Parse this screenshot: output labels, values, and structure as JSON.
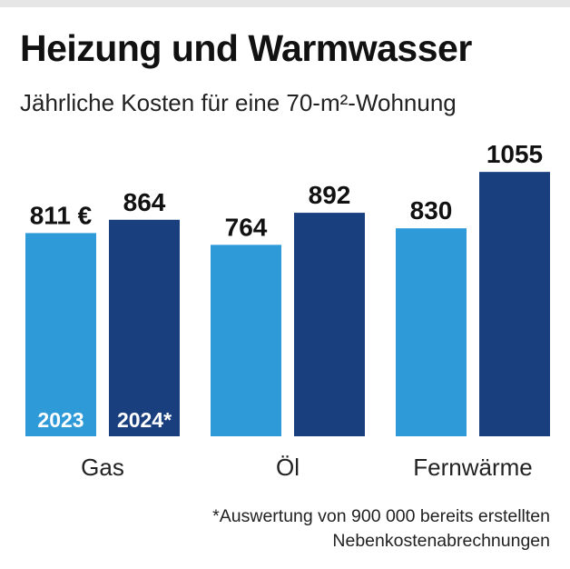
{
  "title": "Heizung und Warmwasser",
  "subtitle": "Jährliche Kosten für eine 70-m²-Wohnung",
  "footnote": {
    "line1": "*Auswertung von 900 000 bereits erstellten",
    "line2": "Nebenkostenabrechnungen"
  },
  "colors": {
    "series_2023": "#2e9ad8",
    "series_2024": "#193f7e",
    "text": "#111111"
  },
  "chart_data": {
    "type": "bar",
    "title": "Heizung und Warmwasser",
    "subtitle": "Jährliche Kosten für eine 70-m²-Wohnung",
    "categories": [
      "Gas",
      "Öl",
      "Fernwärme"
    ],
    "series": [
      {
        "name": "2023",
        "values": [
          811,
          764,
          830
        ],
        "labels": [
          "811 €",
          "764",
          "830"
        ]
      },
      {
        "name": "2024*",
        "values": [
          864,
          892,
          1055
        ],
        "labels": [
          "864",
          "892",
          "1055"
        ]
      }
    ],
    "unit": "€",
    "grid": false,
    "legend": "inside-bars-first-group"
  }
}
